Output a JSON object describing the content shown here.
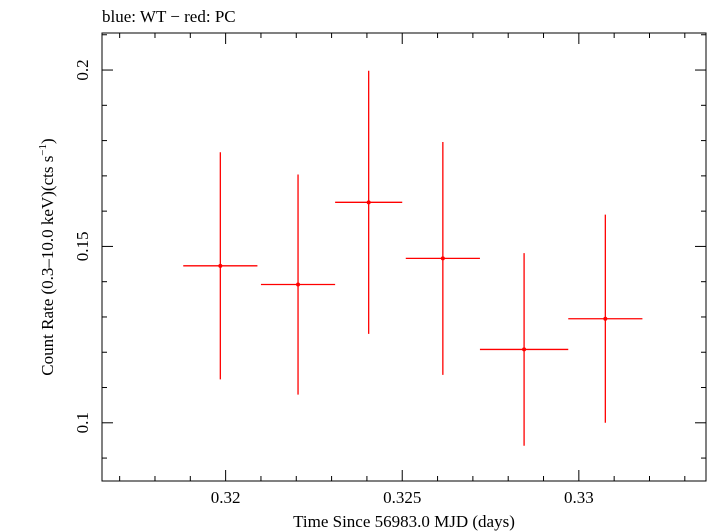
{
  "chart_data": {
    "type": "scatter",
    "title": "blue: WT − red: PC",
    "xlabel": "Time Since 56983.0 MJD (days)",
    "ylabel_main": "Count Rate (0.3–10.0 keV)(cts s",
    "ylabel_sup": "−1",
    "ylabel_close": ")",
    "xlim": [
      0.3165,
      0.3336
    ],
    "ylim": [
      0.0835,
      0.2105
    ],
    "xticks": [
      {
        "value": 0.32,
        "label": "0.32"
      },
      {
        "value": 0.325,
        "label": "0.325"
      },
      {
        "value": 0.33,
        "label": "0.33"
      }
    ],
    "yticks": [
      {
        "value": 0.1,
        "label": "0.1"
      },
      {
        "value": 0.15,
        "label": "0.15"
      },
      {
        "value": 0.2,
        "label": "0.2"
      }
    ],
    "grid": false,
    "series": [
      {
        "color": "#ff0000",
        "points": [
          {
            "x": 0.31985,
            "xerr": 0.00105,
            "y": 0.1445,
            "yerr": 0.0322
          },
          {
            "x": 0.32205,
            "xerr": 0.00105,
            "y": 0.1392,
            "yerr": 0.0312
          },
          {
            "x": 0.32405,
            "xerr": 0.00095,
            "y": 0.1625,
            "yerr": 0.0373
          },
          {
            "x": 0.32615,
            "xerr": 0.00105,
            "y": 0.1466,
            "yerr": 0.033
          },
          {
            "x": 0.32845,
            "xerr": 0.00125,
            "y": 0.1208,
            "yerr": 0.0273
          },
          {
            "x": 0.33075,
            "xerr": 0.00105,
            "y": 0.1295,
            "yerr": 0.0295
          }
        ]
      }
    ]
  }
}
